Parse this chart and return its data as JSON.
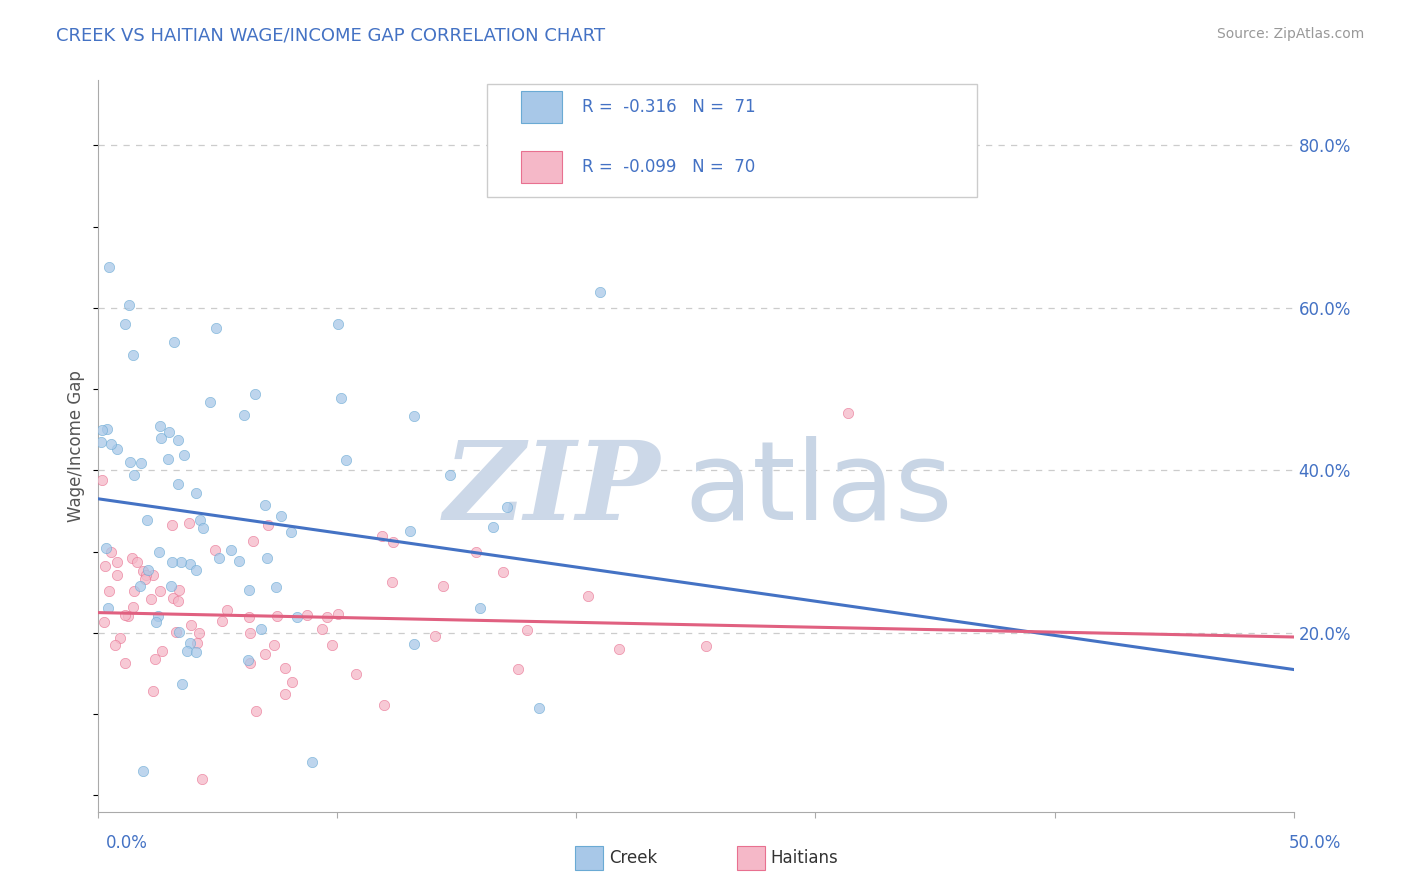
{
  "title": "CREEK VS HAITIAN WAGE/INCOME GAP CORRELATION CHART",
  "source": "Source: ZipAtlas.com",
  "ylabel": "Wage/Income Gap",
  "xlim": [
    0.0,
    0.5
  ],
  "ylim": [
    -0.02,
    0.88
  ],
  "y_ticks": [
    0.2,
    0.4,
    0.6,
    0.8
  ],
  "y_tick_labels": [
    "20.0%",
    "40.0%",
    "60.0%",
    "80.0%"
  ],
  "creek_color": "#a8c8e8",
  "creek_edge_color": "#6aaad4",
  "haitian_color": "#f5b8c8",
  "haitian_edge_color": "#e87090",
  "trendline_creek_color": "#4472c4",
  "trendline_haitian_color": "#e06080",
  "creek_trend_y0": 0.365,
  "creek_trend_y1": 0.155,
  "haitian_trend_y0": 0.225,
  "haitian_trend_y1": 0.195,
  "legend_color": "#4472c4",
  "grid_color": "#cccccc",
  "background_color": "#ffffff",
  "watermark_zip_color": "#ccd8e8",
  "watermark_atlas_color": "#c8d5e5",
  "title_color": "#4472c4",
  "source_color": "#999999",
  "ylabel_color": "#555555",
  "xtick_label_color": "#4472c4",
  "ytick_label_color": "#4472c4",
  "scatter_size": 55,
  "scatter_alpha": 0.75,
  "scatter_linewidth": 0.5
}
